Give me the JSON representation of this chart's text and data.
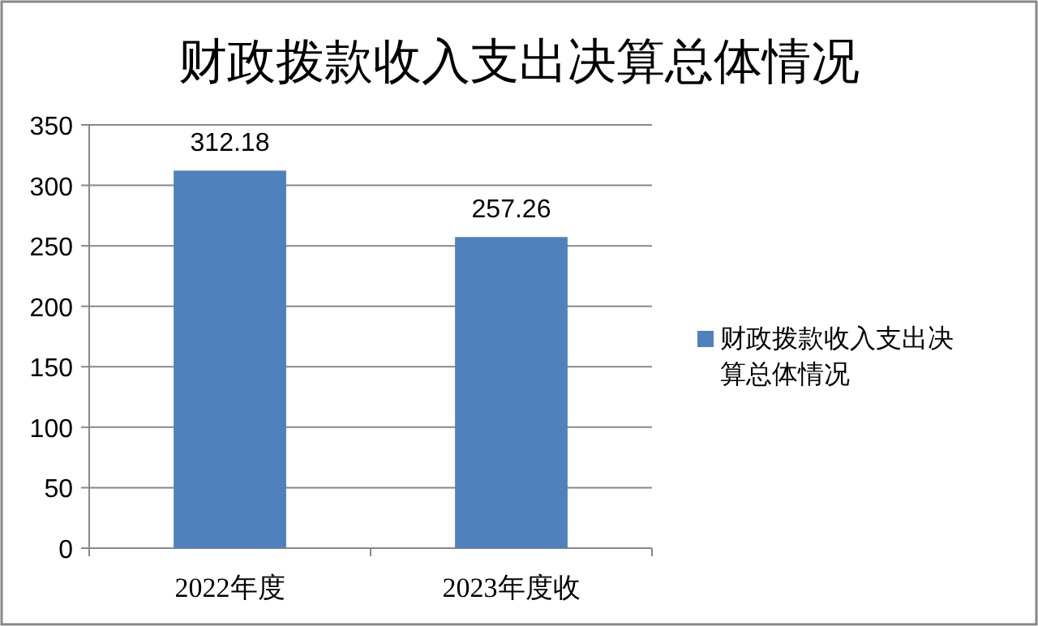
{
  "chart_data": {
    "type": "bar",
    "title": "财政拨款收入支出决算总体情况",
    "categories": [
      "2022年度",
      "2023年度收"
    ],
    "series": [
      {
        "name": "财政拨款收入支出决算总体情况",
        "color": "#4f81bd",
        "values": [
          312.18,
          257.26
        ]
      }
    ],
    "ylim": [
      0,
      350
    ],
    "yticks": [
      0,
      50,
      100,
      150,
      200,
      250,
      300,
      350
    ],
    "grid": "y",
    "data_labels": true,
    "legend": "right"
  }
}
